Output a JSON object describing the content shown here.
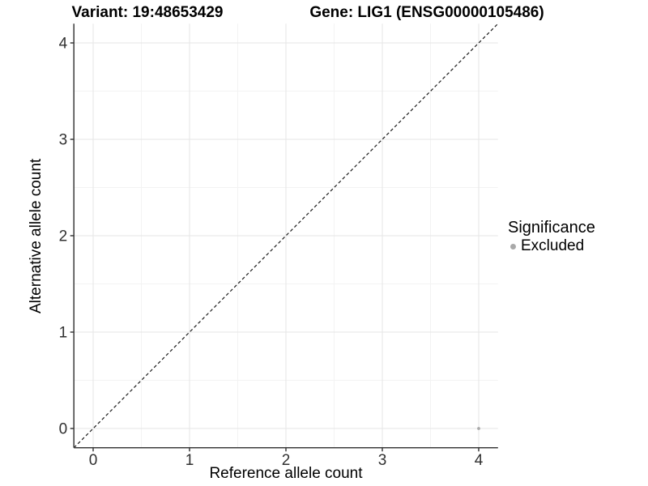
{
  "titles": {
    "variant": "Variant: 19:48653429",
    "gene": "Gene: LIG1 (ENSG00000105486)"
  },
  "legend": {
    "title": "Significance",
    "items": [
      {
        "label": "Excluded",
        "color": "#a9a9a9"
      }
    ]
  },
  "chart_data": {
    "type": "scatter",
    "title": "Variant: 19:48653429 | Gene: LIG1 (ENSG00000105486)",
    "xlabel": "Reference allele count",
    "ylabel": "Alternative allele count",
    "xlim": [
      -0.2,
      4.2
    ],
    "ylim": [
      -0.2,
      4.2
    ],
    "xticks": [
      0,
      1,
      2,
      3,
      4
    ],
    "yticks": [
      0,
      1,
      2,
      3,
      4
    ],
    "xticks_minor": [
      0.5,
      1.5,
      2.5,
      3.5
    ],
    "yticks_minor": [
      0.5,
      1.5,
      2.5,
      3.5
    ],
    "grid": true,
    "legend_position": "right",
    "series": [
      {
        "name": "Excluded",
        "color": "#a9a9a9",
        "points": [
          {
            "x": 4,
            "y": 0
          }
        ]
      }
    ],
    "reference_line": {
      "slope": 1,
      "intercept": 0,
      "style": "dashed",
      "color": "#1a1a1a"
    },
    "colors": {
      "background": "#ffffff",
      "grid_major": "#e6e6e6",
      "grid_minor": "#f3f3f3",
      "axis": "#3c3c3c",
      "tick_label": "#303030"
    }
  }
}
